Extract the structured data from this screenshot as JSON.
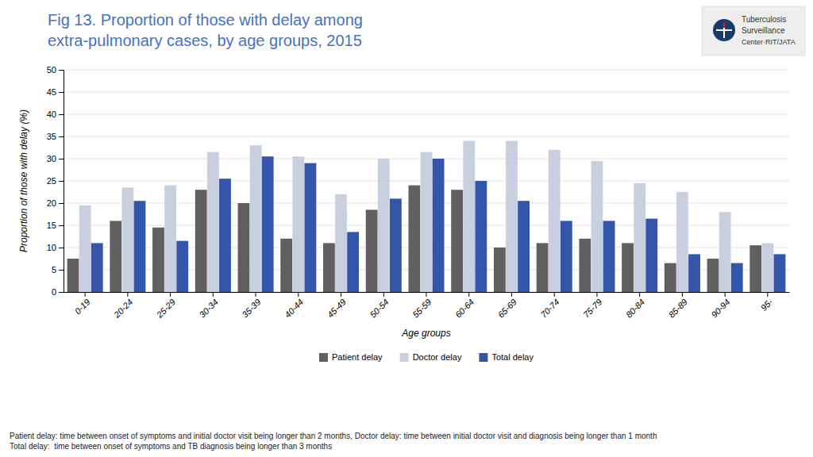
{
  "chart_data": {
    "type": "bar",
    "title": "Fig 13. Proportion of those with delay among\nextra-pulmonary cases, by age groups, 2015",
    "x_label": "Age groups",
    "y_label": "Proportion of those with delay (%)",
    "categories": [
      "0-19",
      "20-24",
      "25-29",
      "30-34",
      "35-39",
      "40-44",
      "45-49",
      "50-54",
      "55-59",
      "60-64",
      "65-69",
      "70-74",
      "75-79",
      "80-84",
      "85-89",
      "90-94",
      "95-"
    ],
    "series": [
      {
        "name": "Patient delay",
        "color": "#606060",
        "values": [
          7.5,
          16,
          14.5,
          23,
          20,
          12,
          11,
          18.5,
          24,
          23,
          10,
          11,
          12,
          11,
          6.5,
          7.5,
          10.5
        ]
      },
      {
        "name": "Doctor delay",
        "color": "#c8d0e0",
        "values": [
          19.5,
          23.5,
          24,
          31.5,
          33,
          30.5,
          22,
          30,
          31.5,
          34,
          34,
          32,
          29.5,
          24.5,
          22.5,
          18,
          11
        ]
      },
      {
        "name": "Total delay",
        "color": "#3355aa",
        "values": [
          11,
          20.5,
          11.5,
          25.5,
          30.5,
          29,
          13.5,
          21,
          30,
          25,
          20.5,
          16,
          16,
          16.5,
          8.5,
          6.5,
          8.5
        ]
      }
    ],
    "ylim": [
      0,
      50
    ],
    "yticks": [
      0,
      5,
      10,
      15,
      20,
      25,
      30,
      35,
      40,
      45,
      50
    ],
    "grid": true,
    "legend": "bottom",
    "annotations": [
      "Patient delay: time between onset of symptoms and initial doctor visit being longer than 2 months, Doctor delay: time between initial doctor visit and diagnosis being longer than 1 month\nTotal delay:  time between onset of symptoms and TB diagnosis being longer than 3 months",
      "Tuberculosis",
      "Surveillance",
      "Center·RIT/JATA"
    ]
  }
}
